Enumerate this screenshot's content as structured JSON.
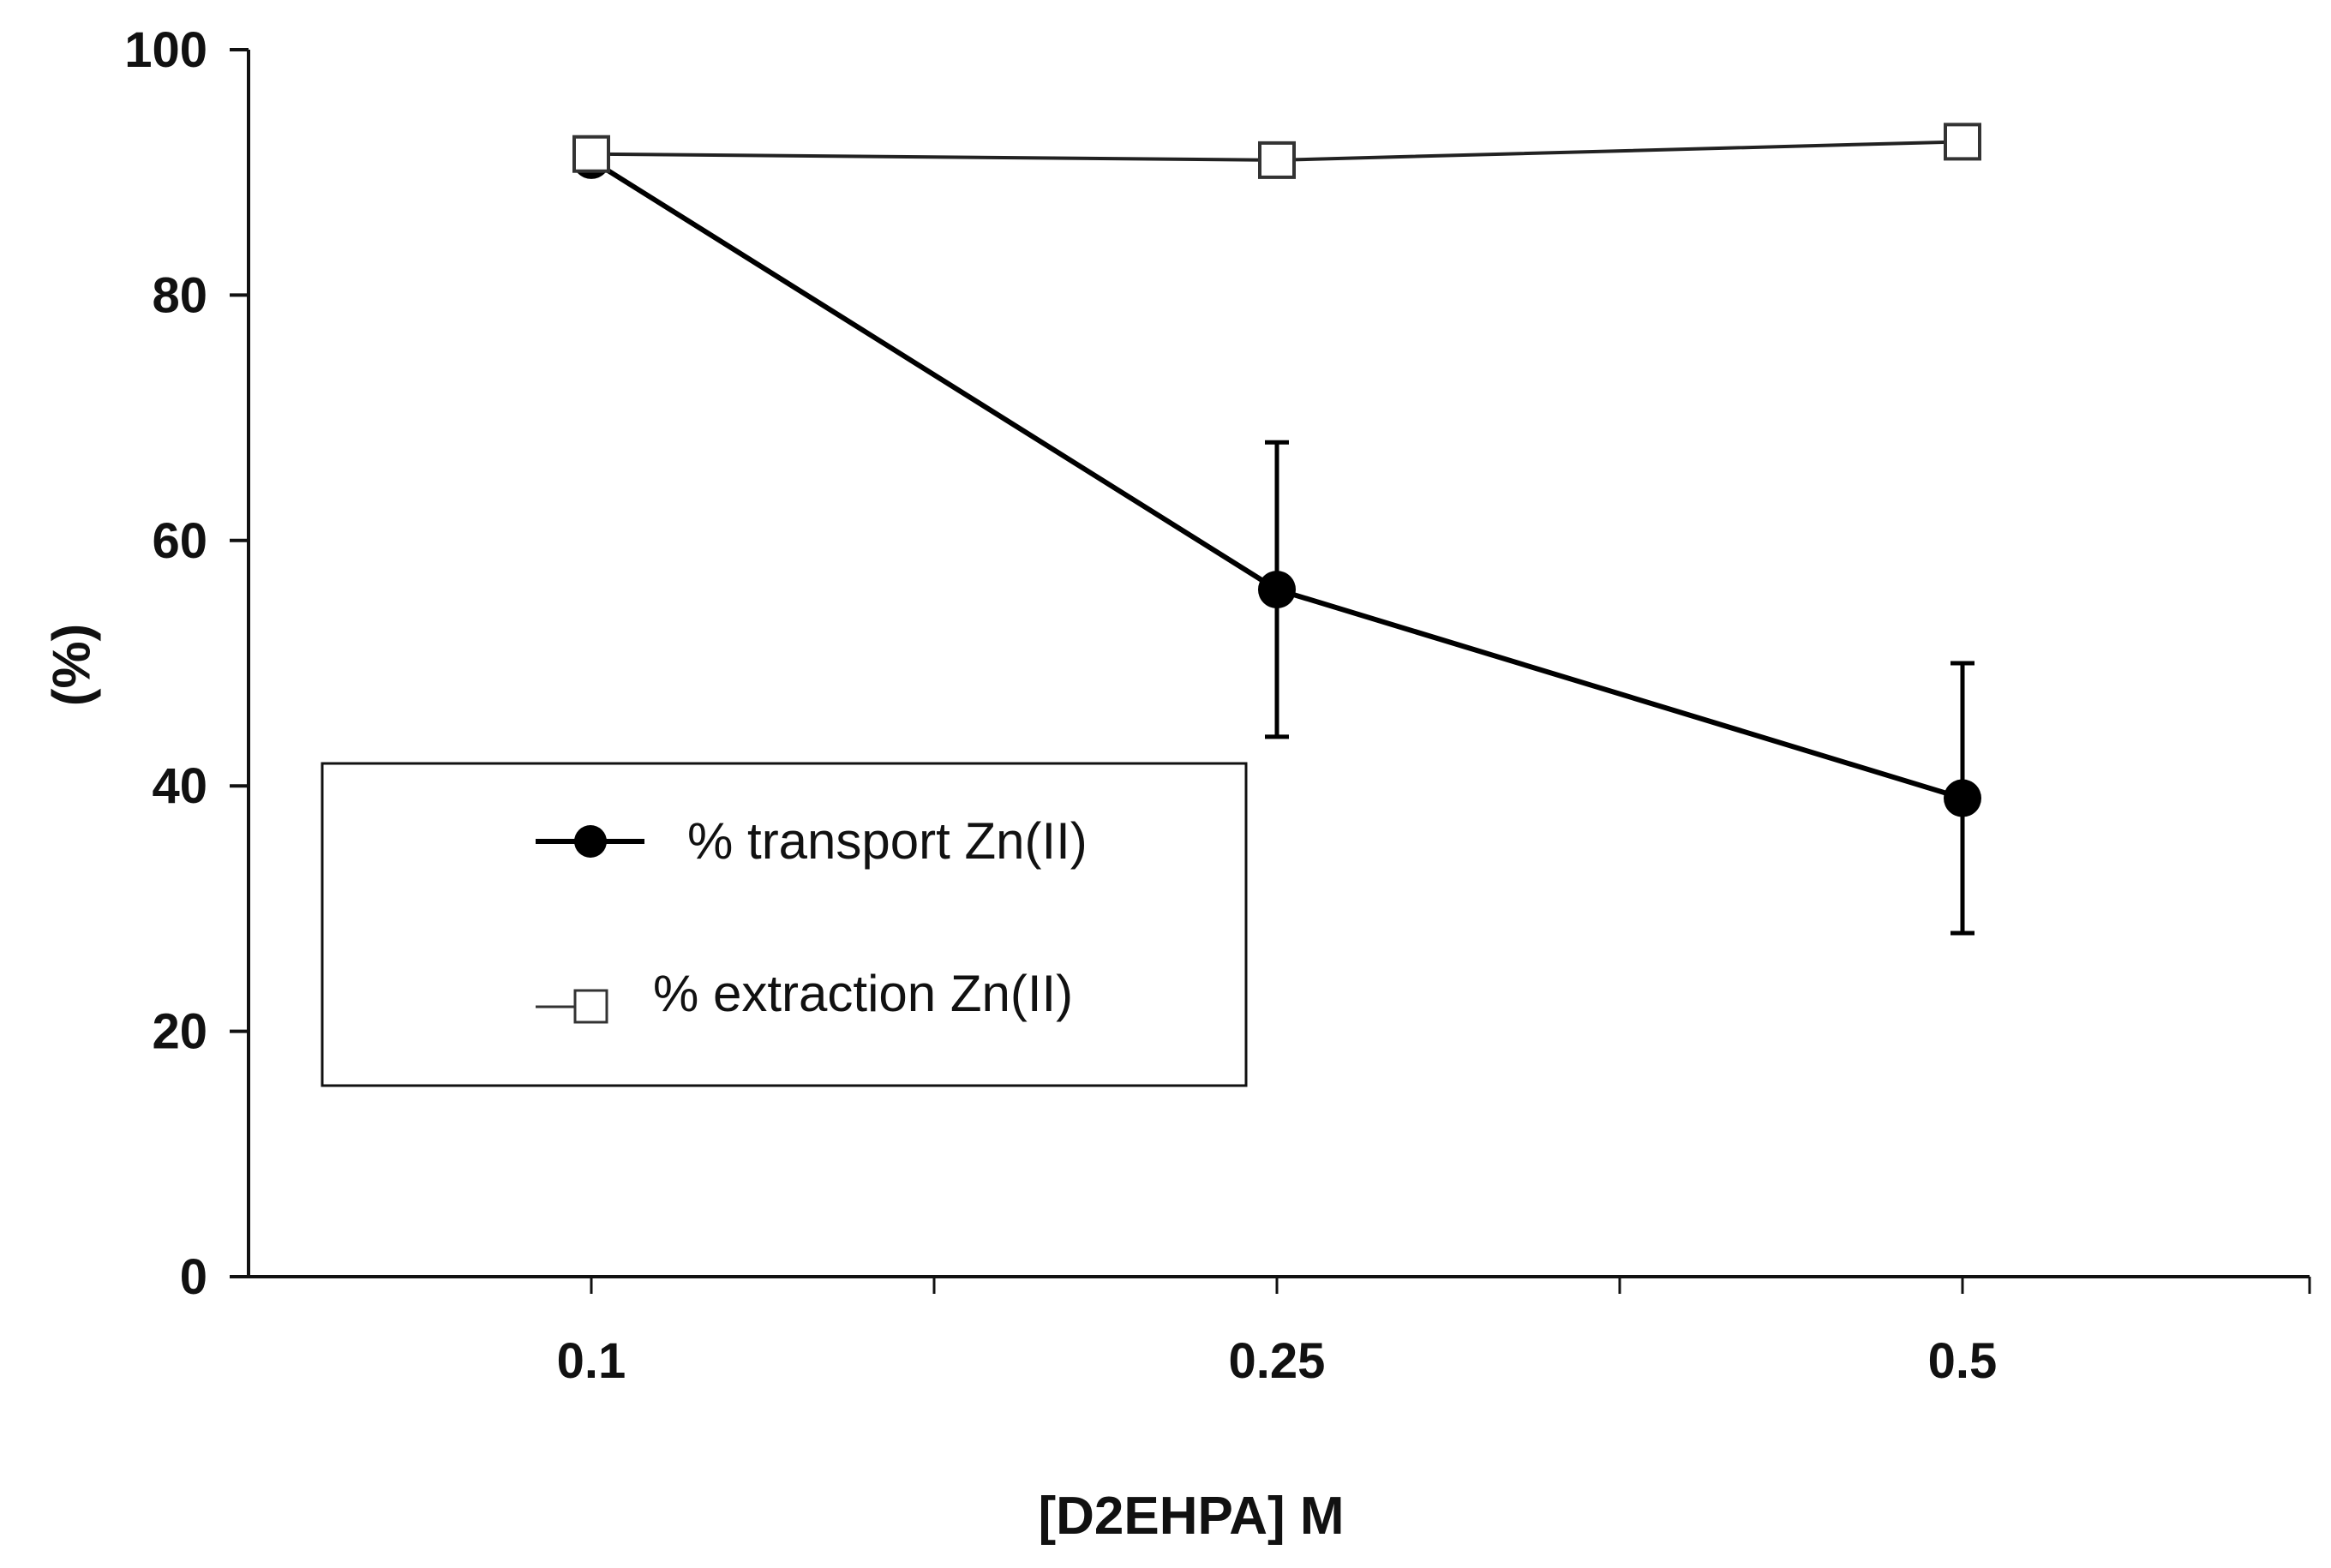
{
  "chart_data": {
    "type": "line",
    "title": "",
    "xlabel": "[D2EHPA] M",
    "ylabel": "(%)",
    "categories": [
      "0.1",
      "0.25",
      "0.5"
    ],
    "ylim": [
      0,
      100
    ],
    "yticks": [
      0,
      20,
      40,
      60,
      80,
      100
    ],
    "grid": false,
    "legend_position": "center-left",
    "series": [
      {
        "name": "% transport Zn(II)",
        "marker": "filled-circle",
        "color": "#000000",
        "values": [
          91,
          56,
          39
        ],
        "error": [
          0,
          12,
          11
        ]
      },
      {
        "name": "% extraction Zn(II)",
        "marker": "open-square",
        "color": "#222222",
        "values": [
          91.5,
          91,
          92.5
        ],
        "error": [
          0,
          0,
          0
        ]
      }
    ]
  }
}
